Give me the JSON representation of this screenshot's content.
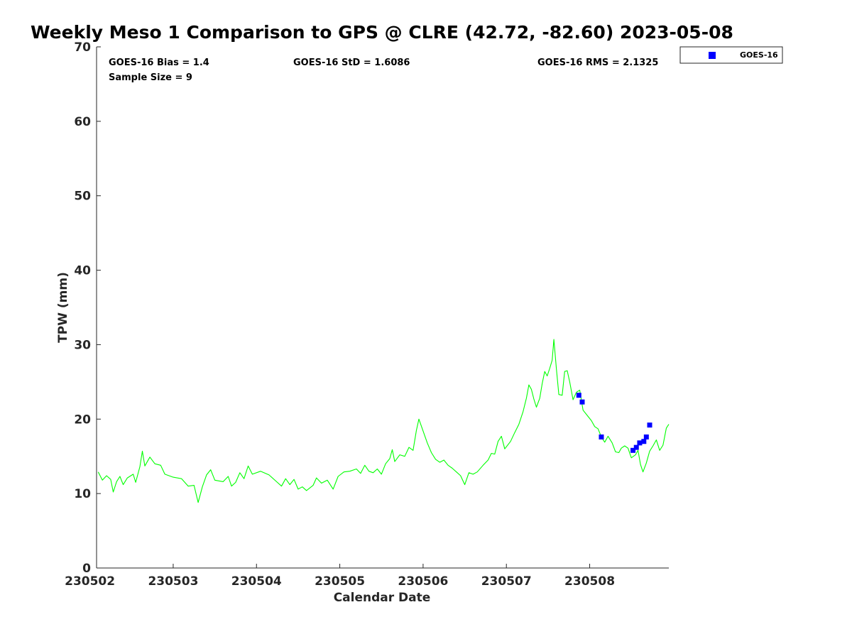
{
  "chart_data": {
    "type": "scatter",
    "title": "Weekly Meso 1 Comparison to GPS @ CLRE (42.72, -82.60) 2023-05-08",
    "xlabel": "Calendar Date",
    "ylabel": "TPW (mm)",
    "x_unit": "days (tick labels yymmdd)",
    "xlim": [
      230502.08,
      230508.95
    ],
    "ylim": [
      0,
      70
    ],
    "yticks": [
      0,
      10,
      20,
      30,
      40,
      50,
      60,
      70
    ],
    "xticks": [
      {
        "value": 230502,
        "label": "230502"
      },
      {
        "value": 230503,
        "label": "230503"
      },
      {
        "value": 230504,
        "label": "230504"
      },
      {
        "value": 230505,
        "label": "230505"
      },
      {
        "value": 230506,
        "label": "230506"
      },
      {
        "value": 230507,
        "label": "230507"
      },
      {
        "value": 230508,
        "label": "230508"
      }
    ],
    "grid": false,
    "legend": {
      "placement": "outside-top-right",
      "entries": [
        "GOES-16"
      ]
    },
    "stats": {
      "bias": "GOES-16 Bias = 1.4",
      "std": "GOES-16 StD = 1.6086",
      "rms": "GOES-16 RMS = 2.1325",
      "sample": "Sample Size = 9"
    },
    "series": [
      {
        "kind": "line",
        "color": "#00ff00",
        "points": [
          [
            230502.1,
            12.9
          ],
          [
            230502.15,
            11.8
          ],
          [
            230502.2,
            12.4
          ],
          [
            230502.25,
            11.9
          ],
          [
            230502.28,
            10.2
          ],
          [
            230502.32,
            11.6
          ],
          [
            230502.36,
            12.3
          ],
          [
            230502.4,
            11.2
          ],
          [
            230502.45,
            12.1
          ],
          [
            230502.52,
            12.6
          ],
          [
            230502.55,
            11.5
          ],
          [
            230502.6,
            13.6
          ],
          [
            230502.63,
            15.7
          ],
          [
            230502.66,
            13.7
          ],
          [
            230502.72,
            14.9
          ],
          [
            230502.78,
            14.0
          ],
          [
            230502.85,
            13.8
          ],
          [
            230502.9,
            12.6
          ],
          [
            230503.0,
            12.2
          ],
          [
            230503.1,
            12.0
          ],
          [
            230503.18,
            11.0
          ],
          [
            230503.25,
            11.1
          ],
          [
            230503.3,
            8.8
          ],
          [
            230503.35,
            10.9
          ],
          [
            230503.4,
            12.5
          ],
          [
            230503.45,
            13.2
          ],
          [
            230503.5,
            11.8
          ],
          [
            230503.6,
            11.6
          ],
          [
            230503.66,
            12.3
          ],
          [
            230503.7,
            11.0
          ],
          [
            230503.75,
            11.5
          ],
          [
            230503.8,
            12.8
          ],
          [
            230503.85,
            12.0
          ],
          [
            230503.9,
            13.7
          ],
          [
            230503.95,
            12.6
          ],
          [
            230504.05,
            13.0
          ],
          [
            230504.15,
            12.5
          ],
          [
            230504.25,
            11.5
          ],
          [
            230504.3,
            11.0
          ],
          [
            230504.35,
            12.0
          ],
          [
            230504.4,
            11.2
          ],
          [
            230504.45,
            11.9
          ],
          [
            230504.5,
            10.6
          ],
          [
            230504.55,
            10.9
          ],
          [
            230504.6,
            10.4
          ],
          [
            230504.68,
            11.1
          ],
          [
            230504.72,
            12.1
          ],
          [
            230504.78,
            11.4
          ],
          [
            230504.85,
            11.8
          ],
          [
            230504.92,
            10.6
          ],
          [
            230504.98,
            12.3
          ],
          [
            230505.05,
            12.9
          ],
          [
            230505.12,
            13.0
          ],
          [
            230505.2,
            13.3
          ],
          [
            230505.25,
            12.7
          ],
          [
            230505.3,
            13.8
          ],
          [
            230505.35,
            13.0
          ],
          [
            230505.4,
            12.8
          ],
          [
            230505.45,
            13.3
          ],
          [
            230505.5,
            12.6
          ],
          [
            230505.55,
            14.0
          ],
          [
            230505.6,
            14.7
          ],
          [
            230505.63,
            15.9
          ],
          [
            230505.66,
            14.3
          ],
          [
            230505.72,
            15.2
          ],
          [
            230505.78,
            15.0
          ],
          [
            230505.83,
            16.2
          ],
          [
            230505.88,
            15.8
          ],
          [
            230505.92,
            18.5
          ],
          [
            230505.95,
            20.0
          ],
          [
            230506.0,
            18.4
          ],
          [
            230506.05,
            16.8
          ],
          [
            230506.1,
            15.5
          ],
          [
            230506.15,
            14.6
          ],
          [
            230506.2,
            14.2
          ],
          [
            230506.25,
            14.5
          ],
          [
            230506.3,
            13.8
          ],
          [
            230506.35,
            13.4
          ],
          [
            230506.4,
            12.9
          ],
          [
            230506.45,
            12.4
          ],
          [
            230506.5,
            11.2
          ],
          [
            230506.55,
            12.8
          ],
          [
            230506.6,
            12.6
          ],
          [
            230506.65,
            12.9
          ],
          [
            230506.72,
            13.8
          ],
          [
            230506.78,
            14.5
          ],
          [
            230506.82,
            15.4
          ],
          [
            230506.86,
            15.3
          ],
          [
            230506.9,
            17.0
          ],
          [
            230506.94,
            17.7
          ],
          [
            230506.98,
            16.0
          ],
          [
            230507.05,
            17.0
          ],
          [
            230507.1,
            18.2
          ],
          [
            230507.15,
            19.3
          ],
          [
            230507.2,
            21.0
          ],
          [
            230507.24,
            22.8
          ],
          [
            230507.27,
            24.6
          ],
          [
            230507.3,
            24.0
          ],
          [
            230507.33,
            22.7
          ],
          [
            230507.36,
            21.6
          ],
          [
            230507.4,
            22.8
          ],
          [
            230507.43,
            24.8
          ],
          [
            230507.46,
            26.4
          ],
          [
            230507.49,
            25.8
          ],
          [
            230507.52,
            26.8
          ],
          [
            230507.55,
            27.9
          ],
          [
            230507.57,
            30.7
          ],
          [
            230507.6,
            26.8
          ],
          [
            230507.63,
            23.3
          ],
          [
            230507.67,
            23.2
          ],
          [
            230507.7,
            26.4
          ],
          [
            230507.73,
            26.5
          ],
          [
            230507.76,
            25.0
          ],
          [
            230507.8,
            22.6
          ],
          [
            230507.84,
            23.6
          ],
          [
            230507.88,
            23.9
          ],
          [
            230507.92,
            21.2
          ],
          [
            230507.97,
            20.5
          ],
          [
            230508.02,
            19.8
          ],
          [
            230508.06,
            19.0
          ],
          [
            230508.1,
            18.7
          ],
          [
            230508.14,
            17.6
          ],
          [
            230508.18,
            16.9
          ],
          [
            230508.22,
            17.7
          ],
          [
            230508.27,
            16.8
          ],
          [
            230508.31,
            15.6
          ],
          [
            230508.35,
            15.5
          ],
          [
            230508.38,
            16.1
          ],
          [
            230508.42,
            16.4
          ],
          [
            230508.46,
            16.1
          ],
          [
            230508.5,
            14.8
          ],
          [
            230508.55,
            15.2
          ],
          [
            230508.58,
            15.8
          ],
          [
            230508.61,
            13.9
          ],
          [
            230508.64,
            12.9
          ],
          [
            230508.68,
            14.1
          ],
          [
            230508.72,
            15.7
          ],
          [
            230508.76,
            16.4
          ],
          [
            230508.8,
            17.2
          ],
          [
            230508.84,
            15.8
          ],
          [
            230508.88,
            16.5
          ],
          [
            230508.92,
            18.8
          ],
          [
            230508.95,
            19.3
          ]
        ]
      },
      {
        "name": "GOES-16",
        "kind": "scatter",
        "color": "#0000ff",
        "marker": "square",
        "points": [
          [
            230507.87,
            23.2
          ],
          [
            230507.91,
            22.3
          ],
          [
            230508.14,
            17.6
          ],
          [
            230508.52,
            15.8
          ],
          [
            230508.56,
            16.2
          ],
          [
            230508.6,
            16.8
          ],
          [
            230508.65,
            17.0
          ],
          [
            230508.68,
            17.6
          ],
          [
            230508.72,
            19.2
          ]
        ]
      }
    ]
  }
}
